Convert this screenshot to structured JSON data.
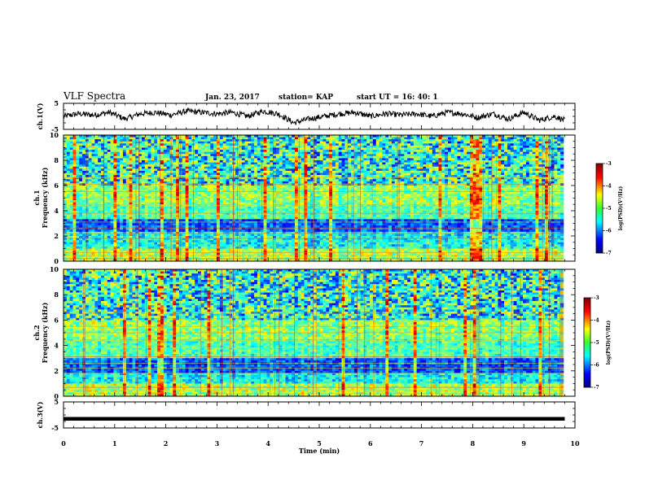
{
  "header": {
    "title": "VLF Spectra",
    "date": "Jan. 23, 2017",
    "station": "station= KAP",
    "start": "start UT = 16: 40: 1"
  },
  "chart_data": [
    {
      "type": "line",
      "name": "ch1-waveform",
      "ylabel": "ch.1(V)",
      "ylim": [
        -5,
        5
      ],
      "yticks": [
        "5",
        "-5"
      ],
      "xlim": [
        0,
        10
      ],
      "x": [
        0,
        0.3,
        0.6,
        0.9,
        1.2,
        1.5,
        1.8,
        2.1,
        2.4,
        2.7,
        3.0,
        3.3,
        3.6,
        3.9,
        4.2,
        4.5,
        4.8,
        5.1,
        5.4,
        5.7,
        6.0,
        6.3,
        6.6,
        6.9,
        7.2,
        7.5,
        7.8,
        8.1,
        8.4,
        8.7,
        9.0,
        9.3,
        9.6,
        9.8
      ],
      "values": [
        0,
        1,
        0.5,
        1.5,
        -1,
        1,
        1.5,
        0.5,
        2,
        1.5,
        1,
        1.5,
        0,
        2,
        1,
        -2.5,
        -1,
        0,
        1,
        1.5,
        0,
        1,
        0.5,
        1,
        0,
        1.5,
        1,
        -0.5,
        1,
        -1,
        1.5,
        -1.5,
        0,
        -1.5
      ]
    },
    {
      "type": "heatmap",
      "name": "ch1-spectrogram",
      "ylabel": "ch.1",
      "ylabel2": "Frequency (kHz)",
      "ylim": [
        0,
        10
      ],
      "yticks": [
        "0",
        "2",
        "4",
        "6",
        "8",
        "10"
      ],
      "xlim": [
        0,
        10
      ],
      "colorbar": {
        "label": "log(PSD)(V²/Hz)",
        "range": [
          -7,
          -3
        ],
        "ticks": [
          "-3",
          "-4",
          "-5",
          "-6",
          "-7"
        ]
      }
    },
    {
      "type": "heatmap",
      "name": "ch2-spectrogram",
      "ylabel": "ch.2",
      "ylabel2": "Frequency (kHz)",
      "ylim": [
        0,
        10
      ],
      "yticks": [
        "0",
        "2",
        "4",
        "6",
        "8",
        "10"
      ],
      "xlim": [
        0,
        10
      ],
      "colorbar": {
        "label": "log(PSD)(V²/Hz)",
        "range": [
          -7,
          -3
        ],
        "ticks": [
          "-3",
          "-4",
          "-5",
          "-6",
          "-7"
        ]
      }
    },
    {
      "type": "line",
      "name": "ch3-waveform",
      "ylabel": "ch.3(V)",
      "ylim": [
        -5,
        5
      ],
      "yticks": [
        "5",
        "-5"
      ],
      "xlim": [
        0,
        9.8
      ],
      "x": [
        0,
        9.8
      ],
      "values": [
        -1.5,
        -1.5
      ]
    }
  ],
  "xaxis": {
    "label": "Time (min)",
    "ticks": [
      "0",
      "1",
      "2",
      "3",
      "4",
      "5",
      "6",
      "7",
      "8",
      "9",
      "10"
    ]
  }
}
